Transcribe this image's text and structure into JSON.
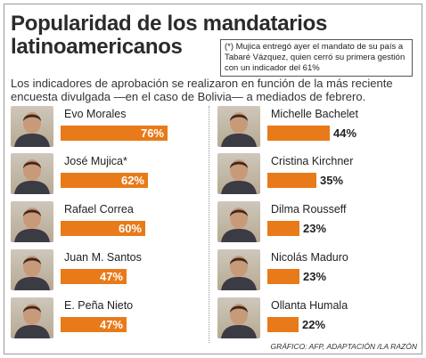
{
  "header": {
    "title_line1": "Popularidad de los mandatarios",
    "title_line2": "latinoamericanos",
    "note": "(*) Mujica entregó ayer el mandato de su país a Tabaré Vázquez, quien cerró su primera gestión con un indicador del 61%",
    "subtitle": "Los indicadores de aprobación se realizaron en función de la más reciente encuesta divulgada —en el caso de Bolivia— a mediados de febrero."
  },
  "credit": "GRÁFICO: AFP, ADAPTACIÓN /LA RAZÓN",
  "colors": {
    "bar": "#e87a19"
  },
  "chart_data": {
    "type": "bar",
    "title": "Popularidad de los mandatarios latinoamericanos",
    "categories": [
      "Evo Morales",
      "José Mujica*",
      "Rafael Correa",
      "Juan M. Santos",
      "E. Peña Nieto",
      "Michelle Bachelet",
      "Cristina Kirchner",
      "Dilma Rousseff",
      "Nicolás Maduro",
      "Ollanta Humala"
    ],
    "values": [
      76,
      62,
      60,
      47,
      47,
      44,
      35,
      23,
      23,
      22
    ],
    "labels": [
      "76%",
      "62%",
      "60%",
      "47%",
      "47%",
      "44%",
      "35%",
      "23%",
      "23%",
      "22%"
    ],
    "ylim": [
      0,
      100
    ]
  }
}
